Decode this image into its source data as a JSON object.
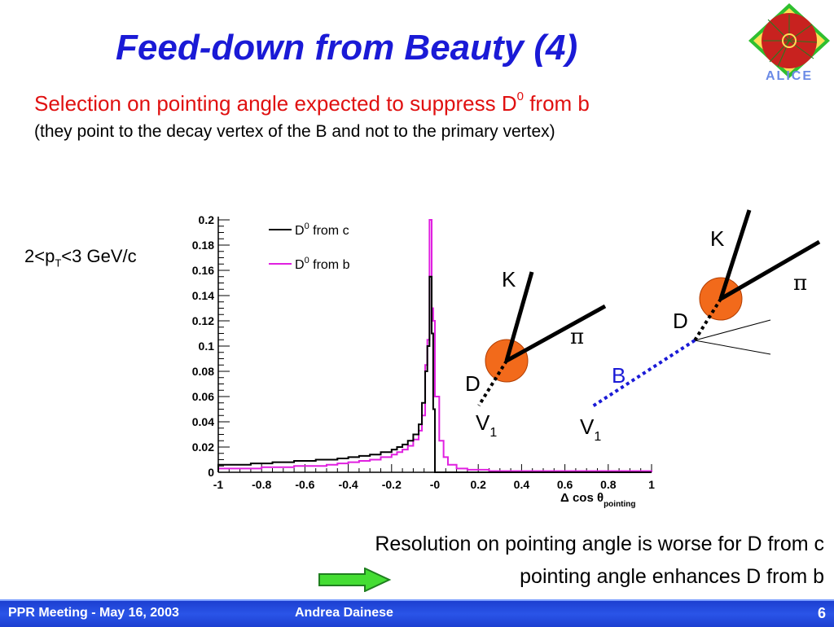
{
  "slide": {
    "title": "Feed-down from Beauty (4)",
    "subtitle_main": "Selection on pointing angle expected to suppress D",
    "subtitle_sup": "0",
    "subtitle_tail": " from b",
    "subtitle_note": "(they point to the decay vertex of the B and not to the primary vertex)",
    "pt_pre": "2<p",
    "pt_sub": "T",
    "pt_post": "<3 GeV/c",
    "conclusion_line1": "Resolution on pointing angle is worse for D from c",
    "conclusion_line2": "pointing angle enhances D from b",
    "logo_text": "ALICE"
  },
  "diagram": {
    "left": {
      "k": "K",
      "pi": "π",
      "d": "D",
      "v": "V",
      "v_sub": "1"
    },
    "right": {
      "k": "K",
      "pi": "π",
      "d": "D",
      "b": "B",
      "v": "V",
      "v_sub": "1"
    },
    "colors": {
      "blob": "#f26a1b",
      "b_line": "#1a1ad6",
      "b_label": "#1a1ad6"
    }
  },
  "footer": {
    "meeting": "PPR Meeting - May 16, 2003",
    "author": "Andrea Dainese",
    "page": "6"
  },
  "chart_data": {
    "type": "line",
    "title": "",
    "xlabel_main": "Δ cos θ",
    "xlabel_sub": "pointing",
    "ylabel": "",
    "xlim": [
      -1,
      1
    ],
    "ylim": [
      0,
      0.2
    ],
    "x_ticks": [
      -1,
      -0.8,
      -0.6,
      -0.4,
      -0.2,
      0,
      0.2,
      0.4,
      0.6,
      0.8,
      1
    ],
    "x_tick_labels": [
      "-1",
      "-0.8",
      "-0.6",
      "-0.4",
      "-0.2",
      "-0",
      "0.2",
      "0.4",
      "0.6",
      "0.8",
      "1"
    ],
    "y_ticks": [
      0,
      0.02,
      0.04,
      0.06,
      0.08,
      0.1,
      0.12,
      0.14,
      0.16,
      0.18,
      0.2
    ],
    "y_tick_labels": [
      "0",
      "0.02",
      "0.04",
      "0.06",
      "0.08",
      "0.1",
      "0.12",
      "0.14",
      "0.16",
      "0.18",
      "0.2"
    ],
    "legend_position": "top-left",
    "series": [
      {
        "name": "D0 from c",
        "legend_base": "D",
        "legend_sup": "0",
        "legend_tail": " from c",
        "color": "#000000",
        "bins": [
          [
            -1.0,
            0.006
          ],
          [
            -0.95,
            0.006
          ],
          [
            -0.9,
            0.006
          ],
          [
            -0.85,
            0.007
          ],
          [
            -0.8,
            0.007
          ],
          [
            -0.75,
            0.008
          ],
          [
            -0.7,
            0.008
          ],
          [
            -0.65,
            0.009
          ],
          [
            -0.6,
            0.009
          ],
          [
            -0.55,
            0.01
          ],
          [
            -0.5,
            0.01
          ],
          [
            -0.45,
            0.011
          ],
          [
            -0.4,
            0.012
          ],
          [
            -0.35,
            0.013
          ],
          [
            -0.3,
            0.014
          ],
          [
            -0.25,
            0.016
          ],
          [
            -0.2,
            0.018
          ],
          [
            -0.175,
            0.02
          ],
          [
            -0.15,
            0.022
          ],
          [
            -0.125,
            0.025
          ],
          [
            -0.1,
            0.03
          ],
          [
            -0.075,
            0.038
          ],
          [
            -0.06,
            0.055
          ],
          [
            -0.045,
            0.08
          ],
          [
            -0.035,
            0.1
          ],
          [
            -0.025,
            0.155
          ],
          [
            -0.015,
            0.11
          ],
          [
            -0.008,
            0.05
          ],
          [
            0.0,
            0.0
          ],
          [
            1.0,
            0.0
          ]
        ]
      },
      {
        "name": "D0 from b",
        "legend_base": "D",
        "legend_sup": "0",
        "legend_tail": " from b",
        "color": "#e020e0",
        "bins": [
          [
            -1.0,
            0.003
          ],
          [
            -0.95,
            0.003
          ],
          [
            -0.9,
            0.003
          ],
          [
            -0.85,
            0.003
          ],
          [
            -0.8,
            0.004
          ],
          [
            -0.75,
            0.004
          ],
          [
            -0.7,
            0.004
          ],
          [
            -0.65,
            0.005
          ],
          [
            -0.6,
            0.005
          ],
          [
            -0.55,
            0.005
          ],
          [
            -0.5,
            0.006
          ],
          [
            -0.45,
            0.007
          ],
          [
            -0.4,
            0.008
          ],
          [
            -0.35,
            0.009
          ],
          [
            -0.3,
            0.01
          ],
          [
            -0.25,
            0.012
          ],
          [
            -0.2,
            0.014
          ],
          [
            -0.175,
            0.016
          ],
          [
            -0.15,
            0.018
          ],
          [
            -0.125,
            0.021
          ],
          [
            -0.1,
            0.026
          ],
          [
            -0.075,
            0.033
          ],
          [
            -0.06,
            0.045
          ],
          [
            -0.045,
            0.085
          ],
          [
            -0.035,
            0.105
          ],
          [
            -0.025,
            0.2
          ],
          [
            -0.015,
            0.13
          ],
          [
            -0.008,
            0.12
          ],
          [
            0.0,
            0.06
          ],
          [
            0.02,
            0.025
          ],
          [
            0.04,
            0.012
          ],
          [
            0.06,
            0.006
          ],
          [
            0.1,
            0.003
          ],
          [
            0.15,
            0.002
          ],
          [
            0.25,
            0.001
          ],
          [
            1.0,
            0.0
          ]
        ]
      }
    ]
  }
}
